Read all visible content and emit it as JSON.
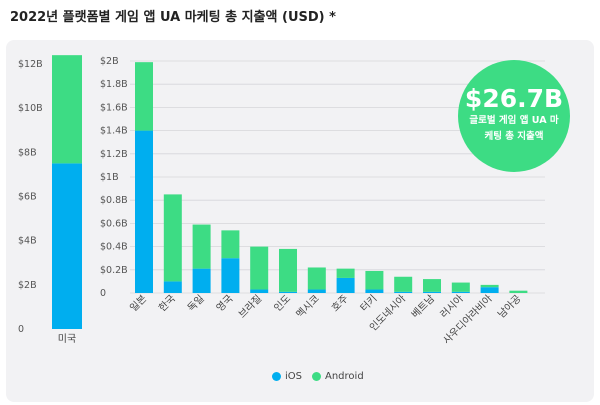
{
  "title": "2022년 플랫폼별 게임 앱 UA 마케팅 총 지출액 (USD) *",
  "badge": {
    "amount": "$26.7B",
    "label": "글로벌 게임 앱 UA 마케팅 총 지출액"
  },
  "colors": {
    "ios": "#00aeef",
    "android": "#3ddc84"
  },
  "chart_data": [
    {
      "type": "bar",
      "stacked": true,
      "categories": [
        "미국"
      ],
      "series": [
        {
          "name": "iOS",
          "values": [
            7.5
          ]
        },
        {
          "name": "Android",
          "values": [
            4.9
          ]
        }
      ],
      "ylim": [
        0,
        12
      ],
      "yticks": [
        "0",
        "$2B",
        "$4B",
        "$6B",
        "$8B",
        "$10B",
        "$12B"
      ],
      "grid": false
    },
    {
      "type": "bar",
      "stacked": true,
      "categories": [
        "일본",
        "한국",
        "독일",
        "영국",
        "브라질",
        "인도",
        "멕시코",
        "호주",
        "터키",
        "인도네시아",
        "베트남",
        "러시아",
        "사우디아라비아",
        "남아공"
      ],
      "series": [
        {
          "name": "iOS",
          "values": [
            1.4,
            0.1,
            0.21,
            0.3,
            0.03,
            0.01,
            0.03,
            0.13,
            0.03,
            0.01,
            0.01,
            0.01,
            0.05,
            0.0
          ]
        },
        {
          "name": "Android",
          "values": [
            0.59,
            0.75,
            0.38,
            0.24,
            0.37,
            0.37,
            0.19,
            0.08,
            0.16,
            0.13,
            0.11,
            0.08,
            0.02,
            0.02
          ]
        }
      ],
      "ylim": [
        0,
        2
      ],
      "yticks": [
        "0",
        "$0.2B",
        "$0.4B",
        "$0.6B",
        "$0.8B",
        "$1B",
        "$1.2B",
        "$1.4B",
        "$1.6B",
        "$1.8B",
        "$2B"
      ],
      "grid": true,
      "legend": "bottom-center"
    }
  ]
}
